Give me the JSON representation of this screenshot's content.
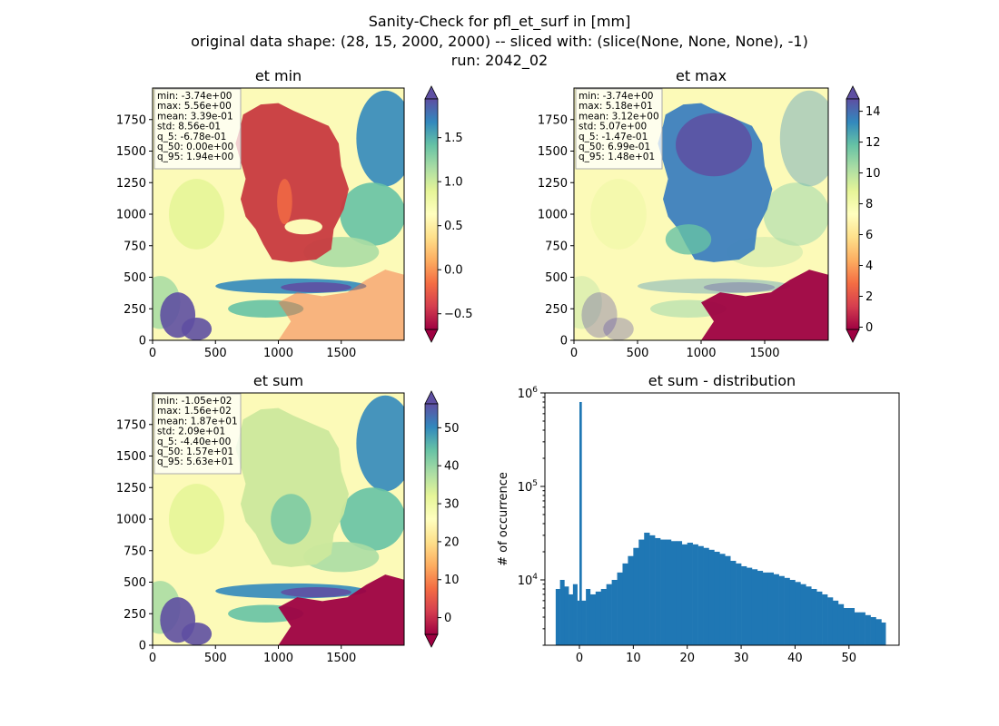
{
  "suptitle": {
    "line1": "Sanity-Check for pfl_et_surf in [mm]",
    "line2": "original data shape: (28, 15, 2000, 2000) -- sliced with: (slice(None, None, None), -1)",
    "line3": "run: 2042_02"
  },
  "chart_data": [
    {
      "type": "heatmap",
      "title": "et min",
      "colormap": "Spectral",
      "x_ticks": [
        "0",
        "500",
        "1000",
        "1500"
      ],
      "y_ticks": [
        "0",
        "250",
        "500",
        "750",
        "1000",
        "1250",
        "1500",
        "1750"
      ],
      "xlim": [
        0,
        2000
      ],
      "ylim": [
        0,
        2000
      ],
      "colorbar": {
        "ticks": [
          "−0.5",
          "0.0",
          "0.5",
          "1.0",
          "1.5"
        ],
        "tick_values": [
          -0.5,
          0.0,
          0.5,
          1.0,
          1.5
        ],
        "range": [
          -0.678,
          1.94
        ],
        "extend": "both"
      },
      "stats": [
        "min: -3.74e+00",
        "max: 5.56e+00",
        "mean: 3.39e-01",
        "std: 8.56e-01",
        "q_5: -6.78e-01",
        "q_50: 0.00e+00",
        "q_95: 1.94e+00"
      ]
    },
    {
      "type": "heatmap",
      "title": "et max",
      "colormap": "Spectral",
      "x_ticks": [
        "0",
        "500",
        "1000",
        "1500"
      ],
      "y_ticks": [
        "0",
        "250",
        "500",
        "750",
        "1000",
        "1250",
        "1500",
        "1750"
      ],
      "xlim": [
        0,
        2000
      ],
      "ylim": [
        0,
        2000
      ],
      "colorbar": {
        "ticks": [
          "0",
          "2",
          "4",
          "6",
          "8",
          "10",
          "12",
          "14"
        ],
        "tick_values": [
          0,
          2,
          4,
          6,
          8,
          10,
          12,
          14
        ],
        "range": [
          -0.147,
          14.8
        ],
        "extend": "both"
      },
      "stats": [
        "min: -3.74e+00",
        "max: 5.18e+01",
        "mean: 3.12e+00",
        "std: 5.07e+00",
        "q_5: -1.47e-01",
        "q_50: 6.99e-01",
        "q_95: 1.48e+01"
      ]
    },
    {
      "type": "heatmap",
      "title": "et sum",
      "colormap": "Spectral",
      "x_ticks": [
        "0",
        "500",
        "1000",
        "1500"
      ],
      "y_ticks": [
        "0",
        "250",
        "500",
        "750",
        "1000",
        "1250",
        "1500",
        "1750"
      ],
      "xlim": [
        0,
        2000
      ],
      "ylim": [
        0,
        2000
      ],
      "colorbar": {
        "ticks": [
          "0",
          "10",
          "20",
          "30",
          "40",
          "50"
        ],
        "tick_values": [
          0,
          10,
          20,
          30,
          40,
          50
        ],
        "range": [
          -4.4,
          56.3
        ],
        "extend": "both"
      },
      "stats": [
        "min: -1.05e+02",
        "max: 1.56e+02",
        "mean: 1.87e+01",
        "std: 2.09e+01",
        "q_5: -4.40e+00",
        "q_50: 1.57e+01",
        "q_95: 5.63e+01"
      ]
    },
    {
      "type": "bar",
      "title": "et sum - distribution",
      "ylabel": "# of occurrence",
      "xlabel": "",
      "yscale": "log",
      "xlim": [
        -6.4,
        59.3
      ],
      "ylim": [
        2000,
        1000000
      ],
      "x_ticks": [
        "0",
        "10",
        "20",
        "30",
        "40",
        "50"
      ],
      "y_ticks": [
        "10^4",
        "10^5",
        "10^6"
      ],
      "color": "#1f77b4",
      "bins_x": [
        -4.4,
        -3.6,
        -2.8,
        -2.0,
        -1.2,
        -0.4,
        0.0,
        0.4,
        1.2,
        2.0,
        3.0,
        4.0,
        5.0,
        6.0,
        7.0,
        8.0,
        9.0,
        10.0,
        11.0,
        12.0,
        13.0,
        14.0,
        15.0,
        16.0,
        17.0,
        18.0,
        19.0,
        20.0,
        21.0,
        22.0,
        23.0,
        24.0,
        25.0,
        26.0,
        27.0,
        28.0,
        29.0,
        30.0,
        31.0,
        32.0,
        33.0,
        34.0,
        35.0,
        36.0,
        37.0,
        38.0,
        39.0,
        40.0,
        41.0,
        42.0,
        43.0,
        44.0,
        45.0,
        46.0,
        47.0,
        48.0,
        49.0,
        50.0,
        51.0,
        52.0,
        53.0,
        54.0,
        55.0,
        56.0
      ],
      "bins_count": [
        8000,
        10000,
        8500,
        7000,
        9000,
        6000,
        800000,
        6000,
        8000,
        7000,
        7500,
        8000,
        9000,
        10000,
        12000,
        15000,
        18000,
        22000,
        27000,
        32000,
        30000,
        28000,
        27000,
        27000,
        26000,
        26000,
        24000,
        25000,
        24000,
        23000,
        22000,
        21000,
        20000,
        19000,
        18000,
        16000,
        15000,
        14000,
        13500,
        13000,
        12500,
        12000,
        12000,
        11500,
        11000,
        10500,
        10000,
        9500,
        9000,
        8500,
        8000,
        7500,
        7000,
        6500,
        6000,
        5500,
        5000,
        5000,
        4500,
        4500,
        4200,
        4000,
        3800,
        3500
      ]
    }
  ]
}
